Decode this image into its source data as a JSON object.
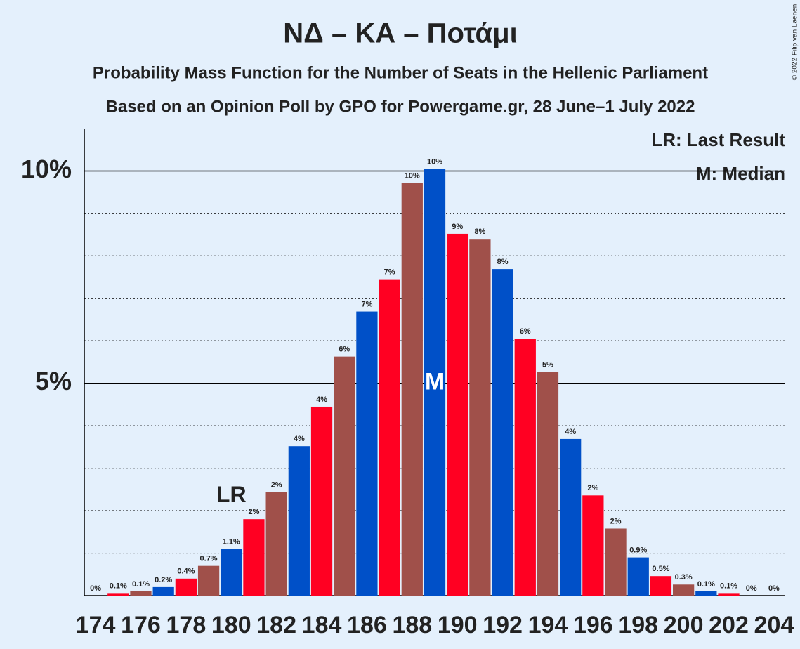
{
  "chart_data": {
    "type": "bar",
    "title": "ΝΔ – ΚΑ – Ποτάμι",
    "subtitle": "Probability Mass Function for the Number of Seats in the Hellenic Parliament",
    "subtitle2": "Based on an Opinion Poll by GPO for Powergame.gr, 28 June–1 July 2022",
    "copyright": "© 2022 Filip van Laenen",
    "legend": [
      "LR: Last Result",
      "M: Median"
    ],
    "categories": [
      174,
      null,
      176,
      null,
      178,
      null,
      180,
      null,
      182,
      null,
      184,
      null,
      186,
      null,
      188,
      null,
      190,
      null,
      192,
      null,
      194,
      null,
      196,
      null,
      198,
      null,
      200,
      null,
      202,
      null,
      204
    ],
    "values": [
      0,
      0.06,
      0.1,
      0.2,
      0.4,
      0.7,
      1.1,
      1.8,
      2.44,
      3.52,
      4.45,
      5.63,
      6.69,
      7.45,
      9.72,
      10.05,
      8.52,
      8.4,
      7.69,
      6.05,
      5.27,
      3.69,
      2.36,
      1.58,
      0.9,
      0.46,
      0.26,
      0.1,
      0.06,
      0,
      0
    ],
    "value_labels": [
      "0%",
      "0.1%",
      "0.1%",
      "0.2%",
      "0.4%",
      "0.7%",
      "1.1%",
      "2%",
      "2%",
      "4%",
      "4%",
      "6%",
      "7%",
      "7%",
      "10%",
      "10%",
      "9%",
      "8%",
      "8%",
      "6%",
      "5%",
      "4%",
      "2%",
      "2%",
      "0.9%",
      "0.5%",
      "0.3%",
      "0.1%",
      "0.1%",
      "0%",
      "0%"
    ],
    "colors": [
      "#0050c8",
      "#ff0022",
      "#a0504a",
      "#0050c8",
      "#ff0022",
      "#a0504a",
      "#0050c8",
      "#ff0022",
      "#a0504a",
      "#0050c8",
      "#ff0022",
      "#a0504a",
      "#0050c8",
      "#ff0022",
      "#a0504a",
      "#0050c8",
      "#ff0022",
      "#a0504a",
      "#0050c8",
      "#ff0022",
      "#a0504a",
      "#0050c8",
      "#ff0022",
      "#a0504a",
      "#0050c8",
      "#ff0022",
      "#a0504a",
      "#0050c8",
      "#ff0022",
      "#a0504a",
      "#0050c8"
    ],
    "annotations": [
      {
        "text": "LR",
        "index": 6
      },
      {
        "text": "M",
        "index": 15
      }
    ],
    "ylim": [
      0,
      11
    ],
    "yticks": [
      {
        "value": 5,
        "label": "5%"
      },
      {
        "value": 10,
        "label": "10%"
      }
    ],
    "minor_yticks": [
      1,
      2,
      3,
      4,
      6,
      7,
      8,
      9
    ]
  }
}
